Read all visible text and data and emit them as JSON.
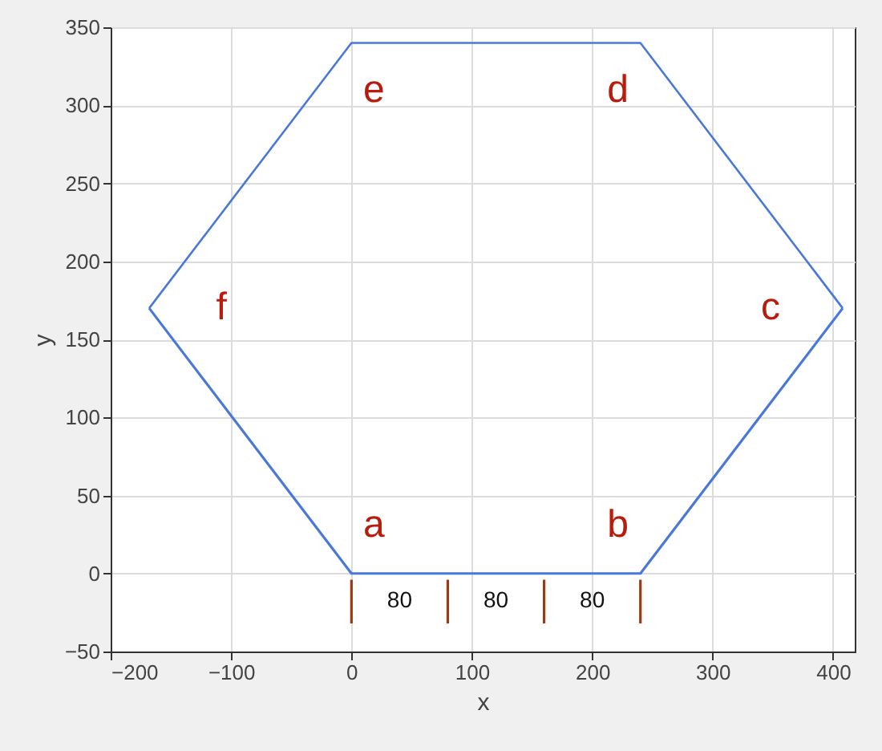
{
  "chart_data": {
    "type": "line",
    "xlabel": "x",
    "ylabel": "y",
    "xlim": [
      -200,
      418
    ],
    "ylim": [
      -50,
      350
    ],
    "xticks": [
      -200,
      -100,
      0,
      100,
      200,
      300,
      400
    ],
    "yticks": [
      -50,
      0,
      50,
      100,
      150,
      200,
      250,
      300,
      350
    ],
    "grid": true,
    "series": [
      {
        "color": "#4a78d8",
        "x": [
          -168,
          0,
          240,
          408
        ],
        "values": [
          170,
          340,
          340,
          170
        ]
      },
      {
        "color": "#4a78d8",
        "x": [
          -168,
          0,
          240,
          408
        ],
        "values": [
          170,
          0,
          0,
          170
        ]
      },
      {
        "color": "#9c3a12",
        "x": [
          0,
          0,
          null,
          80,
          80,
          null,
          160,
          160,
          null,
          240,
          240
        ],
        "values": [
          -4,
          -32,
          null,
          -4,
          -32,
          null,
          -4,
          -32,
          null,
          -4,
          -32
        ]
      }
    ],
    "annotations": [
      {
        "text": "a",
        "x": 0,
        "y": 0
      },
      {
        "text": "b",
        "x": 240,
        "y": 0
      },
      {
        "text": "c",
        "x": 408,
        "y": 170
      },
      {
        "text": "d",
        "x": 240,
        "y": 340
      },
      {
        "text": "e",
        "x": 0,
        "y": 340
      },
      {
        "text": "f",
        "x": -168,
        "y": 170
      },
      "80",
      "80",
      "80"
    ]
  }
}
